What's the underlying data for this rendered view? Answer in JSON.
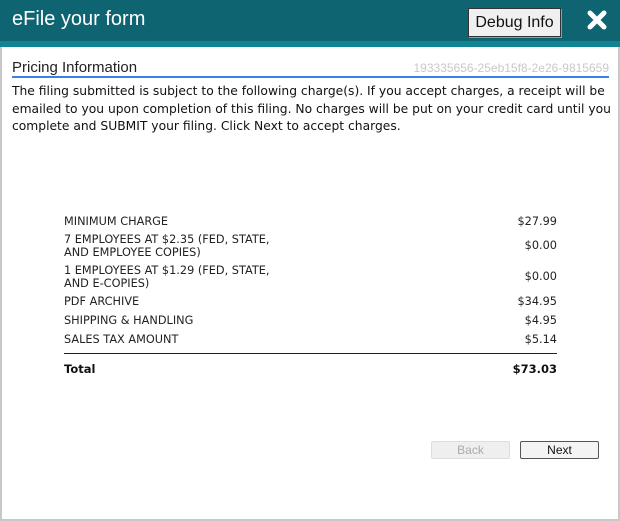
{
  "header": {
    "title": "eFile your form",
    "debug_label": "Debug Info",
    "close_icon": "close-icon"
  },
  "section": {
    "title": "Pricing Information",
    "id": "193335656-25eb15f8-2e26-9815659"
  },
  "description": "The filing submitted is subject to the following charge(s). If you accept charges, a receipt will be emailed to you upon completion of this filing. No charges will be put on your credit card until you complete and SUBMIT your filing. Click Next to accept charges.",
  "charges": [
    {
      "label": "MINIMUM CHARGE",
      "amount": "$27.99"
    },
    {
      "label": "7 EMPLOYEES AT $2.35 (FED, STATE,",
      "label2": "AND EMPLOYEE COPIES)",
      "amount": "$0.00"
    },
    {
      "label": "1 EMPLOYEES AT $1.29 (FED, STATE,",
      "label2": "AND E-COPIES)",
      "amount": "$0.00"
    },
    {
      "label": "PDF ARCHIVE",
      "amount": "$34.95"
    },
    {
      "label": "SHIPPING & HANDLING",
      "amount": "$4.95"
    },
    {
      "label": "SALES TAX AMOUNT",
      "amount": "$5.14"
    }
  ],
  "total": {
    "label": "Total",
    "amount": "$73.03"
  },
  "buttons": {
    "back": "Back",
    "next": "Next",
    "back_disabled": true
  },
  "colors": {
    "header": "#0e6470",
    "stripe": "#0f8593",
    "underline": "#3b82e0"
  }
}
